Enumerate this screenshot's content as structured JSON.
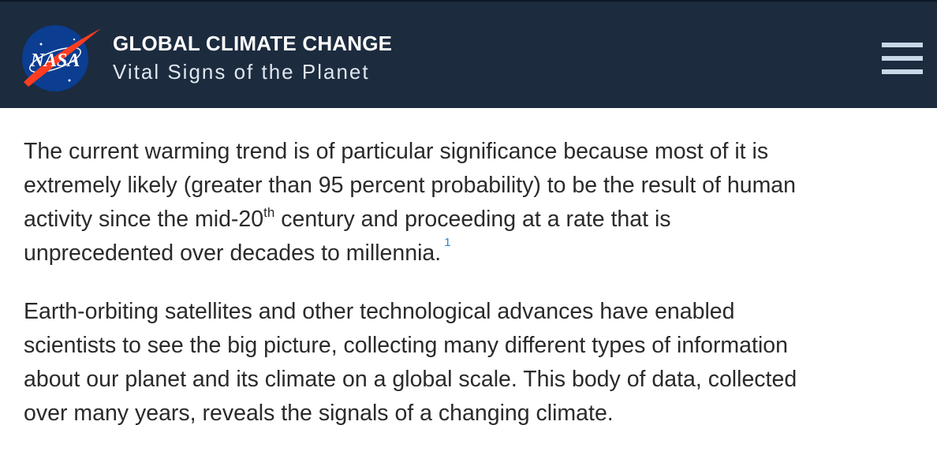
{
  "header": {
    "logo": "NASA",
    "title": "GLOBAL CLIMATE CHANGE",
    "subtitle": "Vital Signs of the Planet"
  },
  "paragraphs": [
    {
      "lines": [
        "The current warming trend is of particular significance because most of it is",
        "extremely likely (greater than 95 percent probability) to be the result of human",
        {
          "text": "activity since the mid-20",
          "superscript": "th",
          "after": " century and proceeding at a rate that is"
        },
        "unprecedented over decades to millennia."
      ],
      "footnote": "1"
    },
    {
      "lines": [
        "Earth-orbiting satellites and other technological advances have enabled",
        "scientists to see the big picture, collecting many different types of information",
        "about our planet and its climate on a global scale. This body of data, collected",
        "over many years, reveals the signals of a changing climate."
      ]
    }
  ]
}
